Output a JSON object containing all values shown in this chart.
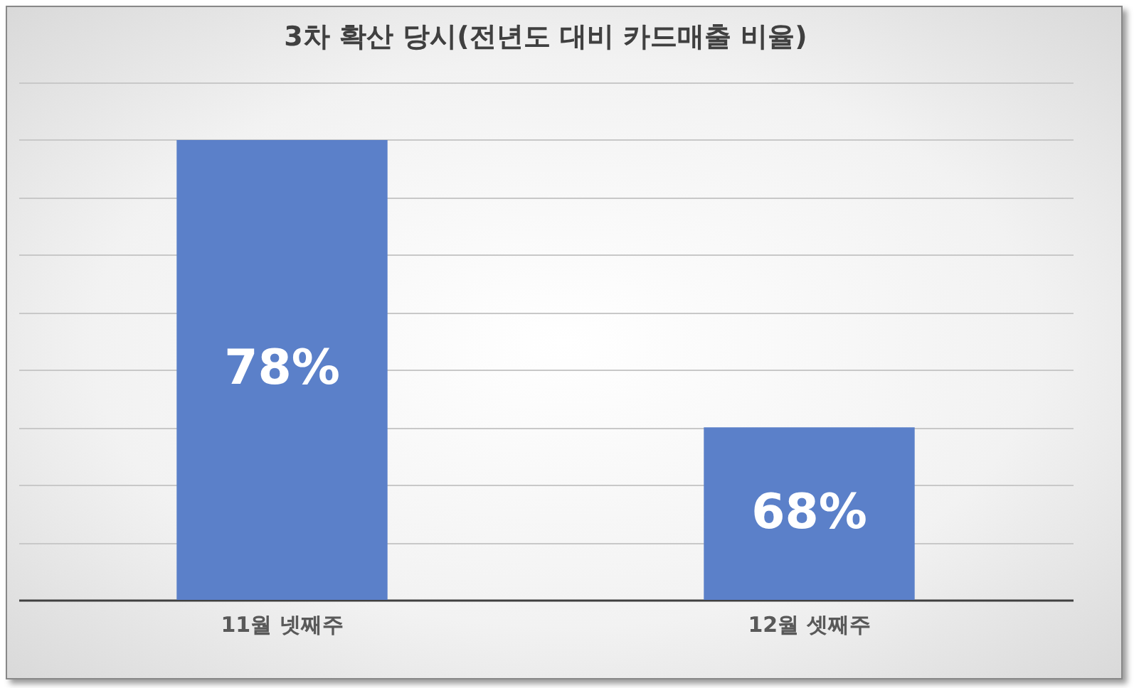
{
  "chart_data": {
    "type": "bar",
    "title": "3차 확산 당시(전년도 대비 카드매출 비율)",
    "categories": [
      "11월 넷째주",
      "12월 셋째주"
    ],
    "values": [
      78,
      68
    ],
    "value_labels": [
      "78%",
      "68%"
    ],
    "color": "#5b80c9",
    "ylim": [
      62,
      80
    ],
    "yticks": [
      {
        "value": 62,
        "label": null
      },
      {
        "value": 64,
        "label": null
      },
      {
        "value": 66,
        "label": null
      },
      {
        "value": 68,
        "label": null
      },
      {
        "value": 70,
        "label": null
      },
      {
        "value": 72,
        "label": null
      },
      {
        "value": 74,
        "label": null
      },
      {
        "value": 76,
        "label": null
      },
      {
        "value": 78,
        "label": null
      },
      {
        "value": 80,
        "label": null
      }
    ],
    "grid": "y",
    "tick_labels": "x"
  }
}
